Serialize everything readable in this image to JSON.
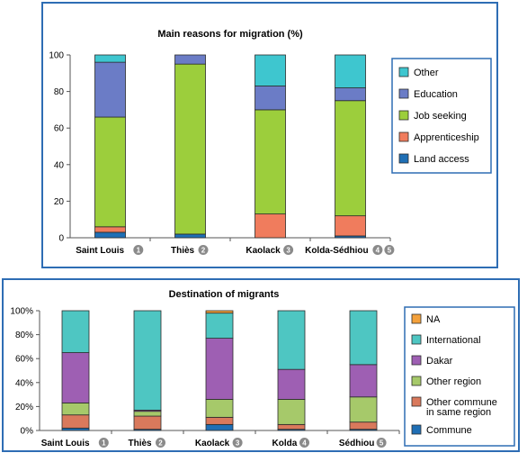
{
  "chart_data": [
    {
      "type": "bar",
      "stacked": true,
      "title": "Main reasons for migration (%)",
      "categories": [
        "Saint Louis",
        "Thiès",
        "Kaolack",
        "Kolda-Sédhiou"
      ],
      "category_badges": [
        [
          "1"
        ],
        [
          "2"
        ],
        [
          "3"
        ],
        [
          "4",
          "5"
        ]
      ],
      "ylim": [
        0,
        100
      ],
      "yticks": [
        "0",
        "20",
        "40",
        "60",
        "80",
        "100"
      ],
      "ytick_values": [
        0,
        20,
        40,
        60,
        80,
        100
      ],
      "legend_position": "right",
      "series": [
        {
          "name": "Land access",
          "color": "#1f6fb5",
          "values": [
            3,
            2,
            0,
            1
          ]
        },
        {
          "name": "Apprenticeship",
          "color": "#f07c5d",
          "values": [
            3,
            0,
            13,
            11
          ]
        },
        {
          "name": "Job seeking",
          "color": "#9cce3c",
          "values": [
            60,
            93,
            57,
            63
          ]
        },
        {
          "name": "Education",
          "color": "#6b7cc6",
          "values": [
            30,
            5,
            13,
            7
          ]
        },
        {
          "name": "Other",
          "color": "#3ec6cf",
          "values": [
            4,
            0,
            17,
            18
          ]
        }
      ]
    },
    {
      "type": "bar",
      "stacked": true,
      "title": "Destination of migrants",
      "categories": [
        "Saint Louis",
        "Thiès",
        "Kaolack",
        "Kolda",
        "Sédhiou"
      ],
      "category_badges": [
        [
          "1"
        ],
        [
          "2"
        ],
        [
          "3"
        ],
        [
          "4"
        ],
        [
          "5"
        ]
      ],
      "ylim": [
        0,
        100
      ],
      "yticks": [
        "0%",
        "20%",
        "40%",
        "60%",
        "80%",
        "100%"
      ],
      "ytick_values": [
        0,
        20,
        40,
        60,
        80,
        100
      ],
      "legend_position": "right",
      "series": [
        {
          "name": "Commune",
          "color": "#1f6fb5",
          "values": [
            2,
            1,
            5,
            1,
            1
          ]
        },
        {
          "name": "Other commune\nin same region",
          "color": "#d9795c",
          "values": [
            11,
            11,
            6,
            4,
            6
          ]
        },
        {
          "name": "Other region",
          "color": "#a6c96a",
          "values": [
            10,
            4,
            15,
            21,
            21
          ]
        },
        {
          "name": "Dakar",
          "color": "#9e5fb3",
          "values": [
            42,
            1,
            51,
            25,
            27
          ]
        },
        {
          "name": " International",
          "color": "#4ec6c2",
          "values": [
            35,
            83,
            21,
            49,
            45
          ]
        },
        {
          "name": "NA",
          "color": "#f4a13b",
          "values": [
            0,
            0,
            2,
            0,
            0
          ]
        }
      ]
    }
  ]
}
